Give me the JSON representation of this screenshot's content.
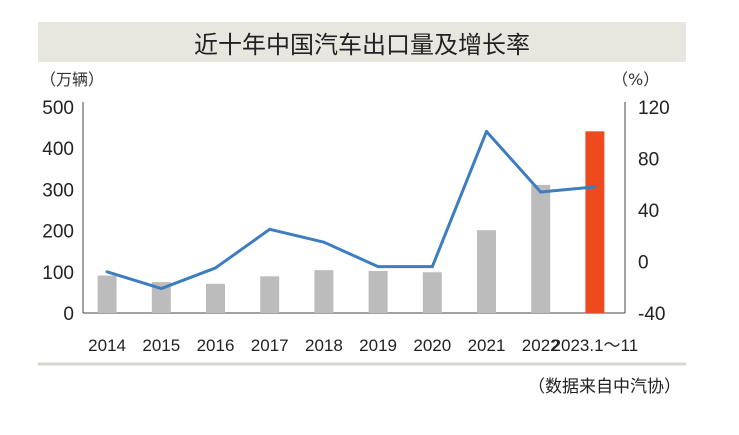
{
  "chart_data": {
    "type": "bar",
    "title": "近十年中国汽车出口量及增长率",
    "ylabel": "（万辆）",
    "y2label": "（%）",
    "categories": [
      "2014",
      "2015",
      "2016",
      "2017",
      "2018",
      "2019",
      "2020",
      "2021",
      "2022",
      "2023.1～11"
    ],
    "series": [
      {
        "type": "bar",
        "axis": "left",
        "values": [
          91,
          75,
          71,
          89,
          104,
          102,
          99,
          201,
          311,
          441
        ]
      },
      {
        "type": "line",
        "axis": "right",
        "values": [
          -8,
          -21,
          -5,
          25,
          15,
          -4,
          -4,
          101,
          54,
          58
        ]
      }
    ],
    "ylim": [
      0,
      500
    ],
    "yticks": [
      "0",
      "100",
      "200",
      "300",
      "400",
      "500"
    ],
    "y2lim": [
      -40,
      120
    ],
    "y2ticks": [
      "-40",
      "0",
      "40",
      "80",
      "120"
    ],
    "grid": false,
    "colors": {
      "bar": "#bdbcbc",
      "highlight_bar": "#ee4a1f",
      "line": "#3d7dc0"
    },
    "source": "（数据来自中汽协）"
  }
}
